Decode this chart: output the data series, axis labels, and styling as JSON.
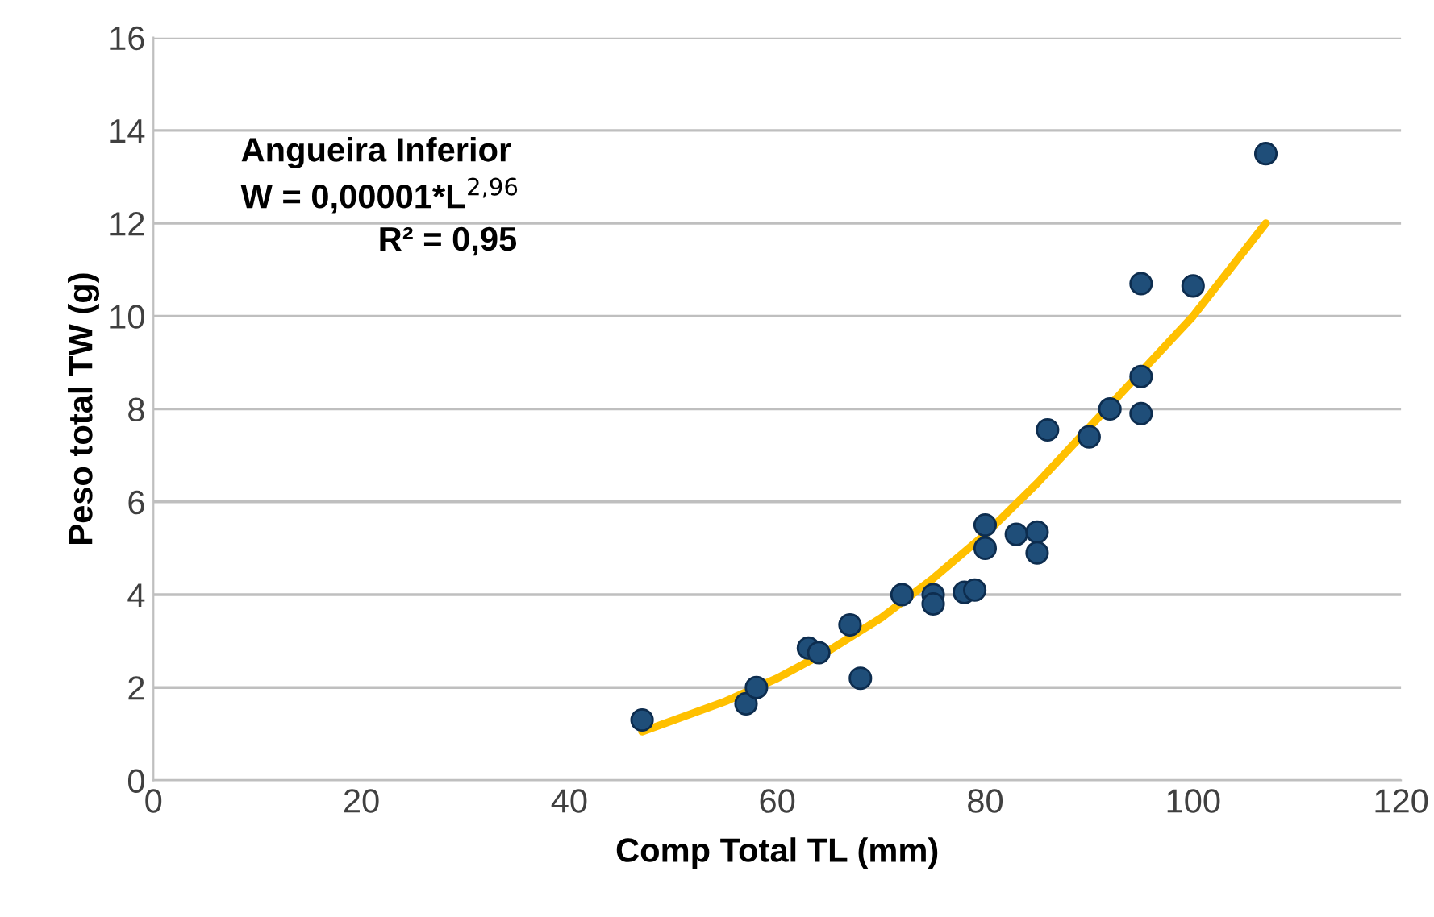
{
  "chart_data": {
    "type": "scatter",
    "xlabel": "Comp Total TL (mm)",
    "ylabel": "Peso total TW (g)",
    "xlim": [
      0,
      120
    ],
    "xticks": [
      0,
      20,
      40,
      60,
      80,
      100,
      120
    ],
    "ylim": [
      0,
      16
    ],
    "yticks": [
      0,
      2,
      4,
      6,
      8,
      10,
      12,
      14,
      16
    ],
    "grid": "y",
    "legend": false,
    "annotations": [
      "Angueira Inferior",
      "W = 0,00001*L$^{2,96}$",
      "R² = 0,95"
    ],
    "series": [
      {
        "marker": "circle",
        "color": "#1f4e79",
        "x": [
          47,
          57,
          58,
          63,
          64,
          67,
          68,
          72,
          75,
          75,
          78,
          79,
          80,
          80,
          83,
          85,
          85,
          86,
          90,
          92,
          95,
          95,
          95,
          100,
          107
        ],
        "values": [
          1.3,
          1.65,
          2.0,
          2.85,
          2.75,
          3.35,
          2.2,
          4.0,
          4.0,
          3.8,
          4.05,
          4.1,
          5.5,
          5.0,
          5.3,
          5.35,
          4.9,
          7.55,
          7.4,
          8.0,
          8.7,
          7.9,
          10.7,
          10.65,
          13.5
        ]
      },
      {
        "type": "line",
        "marker": "none",
        "color": "#ffc000",
        "x": [
          47,
          55,
          60,
          65,
          70,
          75,
          80,
          85,
          90,
          95,
          100,
          107
        ],
        "values": [
          1.05,
          1.7,
          2.2,
          2.8,
          3.5,
          4.35,
          5.3,
          6.4,
          7.6,
          8.8,
          10.0,
          12.0
        ]
      }
    ]
  }
}
